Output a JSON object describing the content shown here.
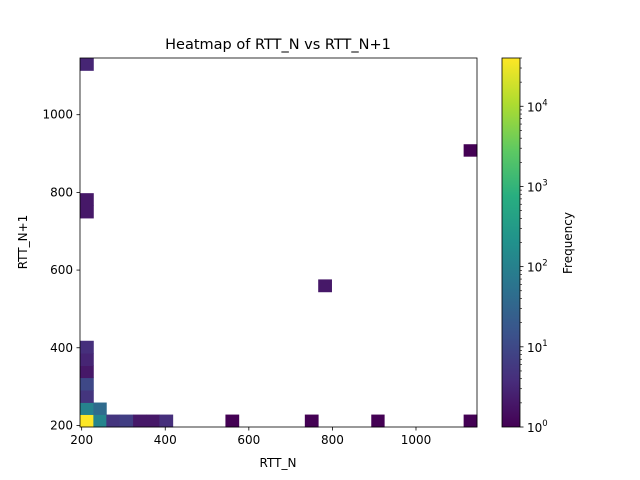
{
  "chart_data": {
    "type": "heatmap",
    "title": "Heatmap of RTT_N vs RTT_N+1",
    "xlabel": "RTT_N",
    "ylabel": "RTT_N+1",
    "xlim": [
      196,
      1146
    ],
    "ylim": [
      196,
      1146
    ],
    "bins": 30,
    "xticks": [
      200,
      400,
      600,
      800,
      1000
    ],
    "yticks": [
      200,
      400,
      600,
      800,
      1000
    ],
    "colorbar": {
      "label": "Frequency",
      "scale": "log",
      "colormap": "viridis",
      "range": [
        1,
        40000
      ],
      "ticks": [
        {
          "value": 1,
          "base": "10",
          "exp": "0"
        },
        {
          "value": 10,
          "base": "10",
          "exp": "1"
        },
        {
          "value": 100,
          "base": "10",
          "exp": "2"
        },
        {
          "value": 1000,
          "base": "10",
          "exp": "3"
        },
        {
          "value": 10000,
          "base": "10",
          "exp": "4"
        }
      ]
    },
    "cells": [
      {
        "x": [
          196,
          228
        ],
        "y": [
          196,
          228
        ],
        "count": 40000
      },
      {
        "x": [
          228,
          259
        ],
        "y": [
          196,
          228
        ],
        "count": 120
      },
      {
        "x": [
          196,
          228
        ],
        "y": [
          228,
          259
        ],
        "count": 110
      },
      {
        "x": [
          228,
          259
        ],
        "y": [
          228,
          259
        ],
        "count": 40
      },
      {
        "x": [
          259,
          291
        ],
        "y": [
          196,
          228
        ],
        "count": 5
      },
      {
        "x": [
          291,
          323
        ],
        "y": [
          196,
          228
        ],
        "count": 7
      },
      {
        "x": [
          323,
          354
        ],
        "y": [
          196,
          228
        ],
        "count": 2
      },
      {
        "x": [
          354,
          386
        ],
        "y": [
          196,
          228
        ],
        "count": 2
      },
      {
        "x": [
          386,
          418
        ],
        "y": [
          196,
          228
        ],
        "count": 4
      },
      {
        "x": [
          544,
          576
        ],
        "y": [
          196,
          228
        ],
        "count": 1
      },
      {
        "x": [
          734,
          766
        ],
        "y": [
          196,
          228
        ],
        "count": 1
      },
      {
        "x": [
          893,
          924
        ],
        "y": [
          196,
          228
        ],
        "count": 1
      },
      {
        "x": [
          1114,
          1146
        ],
        "y": [
          196,
          228
        ],
        "count": 1
      },
      {
        "x": [
          196,
          228
        ],
        "y": [
          259,
          291
        ],
        "count": 5
      },
      {
        "x": [
          196,
          228
        ],
        "y": [
          291,
          323
        ],
        "count": 10
      },
      {
        "x": [
          196,
          228
        ],
        "y": [
          323,
          354
        ],
        "count": 2
      },
      {
        "x": [
          196,
          228
        ],
        "y": [
          354,
          386
        ],
        "count": 3
      },
      {
        "x": [
          196,
          228
        ],
        "y": [
          386,
          418
        ],
        "count": 4
      },
      {
        "x": [
          766,
          798
        ],
        "y": [
          544,
          576
        ],
        "count": 2
      },
      {
        "x": [
          196,
          228
        ],
        "y": [
          734,
          766
        ],
        "count": 2
      },
      {
        "x": [
          196,
          228
        ],
        "y": [
          766,
          798
        ],
        "count": 2
      },
      {
        "x": [
          1114,
          1146
        ],
        "y": [
          893,
          924
        ],
        "count": 1
      },
      {
        "x": [
          196,
          228
        ],
        "y": [
          1114,
          1146
        ],
        "count": 3
      }
    ]
  }
}
